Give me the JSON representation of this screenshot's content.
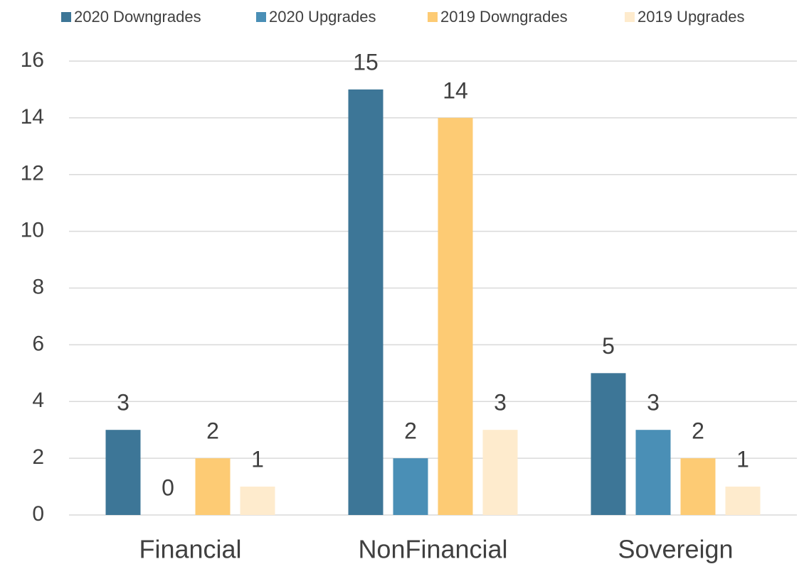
{
  "chart_data": {
    "type": "bar",
    "categories": [
      "Financial",
      "NonFinancial",
      "Sovereign"
    ],
    "series": [
      {
        "name": "2020 Downgrades",
        "color": "#3d7697",
        "values": [
          3,
          15,
          5
        ]
      },
      {
        "name": "2020 Upgrades",
        "color": "#4a8fb6",
        "values": [
          0,
          2,
          3
        ]
      },
      {
        "name": "2019 Downgrades",
        "color": "#fdcb74",
        "values": [
          2,
          14,
          2
        ]
      },
      {
        "name": "2019 Upgrades",
        "color": "#feebcd",
        "values": [
          1,
          3,
          1
        ]
      }
    ],
    "ylim": [
      0,
      16
    ],
    "yticks": [
      0,
      2,
      4,
      6,
      8,
      10,
      12,
      14,
      16
    ],
    "grid": true,
    "legend": "top"
  }
}
